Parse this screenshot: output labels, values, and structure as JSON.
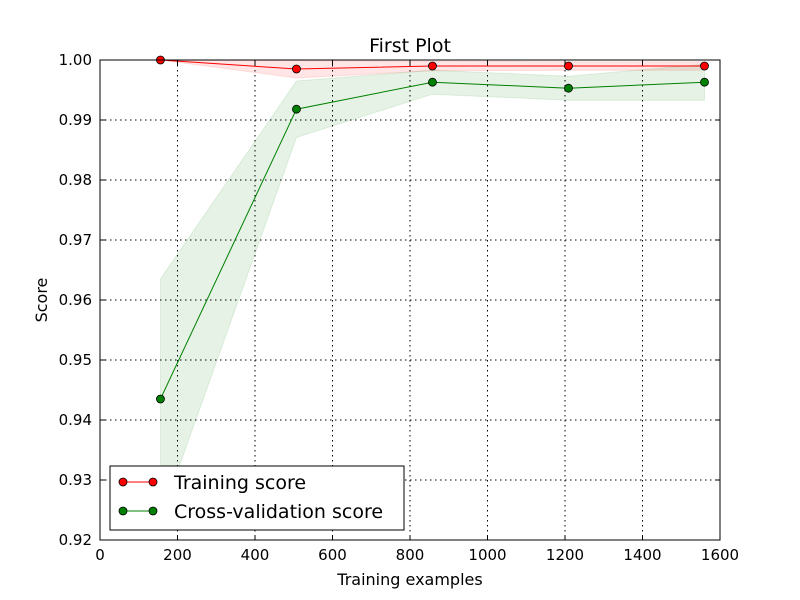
{
  "chart_data": {
    "type": "line",
    "title": "First Plot",
    "xlabel": "Training examples",
    "ylabel": "Score",
    "xlim": [
      0,
      1600
    ],
    "ylim": [
      0.92,
      1.0
    ],
    "xticks": [
      0,
      200,
      400,
      600,
      800,
      1000,
      1200,
      1400,
      1600
    ],
    "yticks": [
      0.92,
      0.93,
      0.94,
      0.95,
      0.96,
      0.97,
      0.98,
      0.99,
      1.0
    ],
    "ytick_labels": [
      "0.92",
      "0.93",
      "0.94",
      "0.95",
      "0.96",
      "0.97",
      "0.98",
      "0.99",
      "1.00"
    ],
    "grid": true,
    "legend_position": "lower-left",
    "x": [
      156,
      507,
      858,
      1209,
      1560
    ],
    "series": [
      {
        "name": "Training score",
        "color": "#ff0000",
        "band_color": "#ff0000",
        "values": [
          1.0,
          0.9985,
          0.999,
          0.999,
          0.999
        ],
        "band_upper": [
          1.0,
          0.9999,
          0.9998,
          0.9997,
          0.9997
        ],
        "band_lower": [
          1.0,
          0.997,
          0.9982,
          0.9983,
          0.9983
        ]
      },
      {
        "name": "Cross-validation score",
        "color": "#008000",
        "band_color": "#008000",
        "values": [
          0.9435,
          0.9918,
          0.9963,
          0.9953,
          0.9963
        ],
        "band_upper": [
          0.9635,
          0.9965,
          0.9983,
          0.9973,
          0.9993
        ],
        "band_lower": [
          0.9235,
          0.9871,
          0.9943,
          0.9933,
          0.9933
        ]
      }
    ]
  }
}
